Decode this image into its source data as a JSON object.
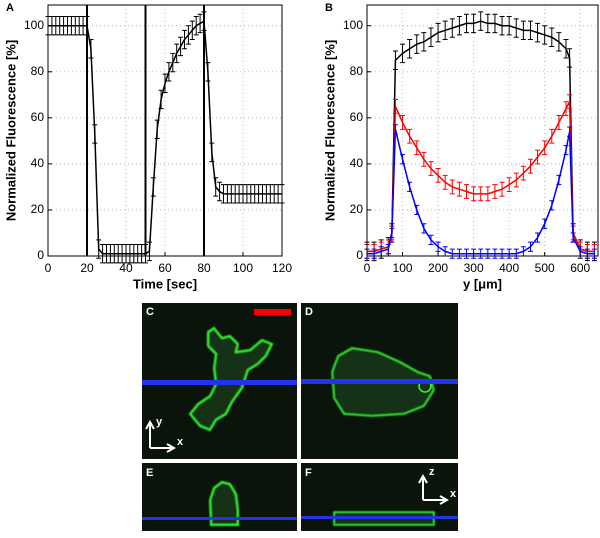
{
  "chart_data": [
    {
      "type": "line",
      "label": "A",
      "xlabel": "Time [sec]",
      "ylabel": "Normalized Fluorescence [%]",
      "xlim": [
        0,
        120
      ],
      "xticks": [
        0,
        20,
        40,
        60,
        80,
        100,
        120
      ],
      "ylim": [
        0,
        109
      ],
      "yticks": [
        0,
        20,
        40,
        60,
        80,
        100
      ],
      "grid": true,
      "vlines": [
        20,
        50,
        80
      ],
      "x": [
        0,
        2,
        4,
        6,
        8,
        10,
        12,
        14,
        16,
        18,
        20,
        22,
        24,
        26,
        28,
        30,
        32,
        34,
        36,
        38,
        40,
        42,
        44,
        46,
        48,
        50,
        52,
        54,
        56,
        58,
        60,
        62,
        64,
        66,
        68,
        70,
        72,
        74,
        76,
        78,
        80,
        82,
        84,
        86,
        88,
        90,
        92,
        94,
        96,
        98,
        100,
        102,
        104,
        106,
        108,
        110,
        112,
        114,
        116,
        118,
        120
      ],
      "series": [
        {
          "color": "#000000",
          "error": 4,
          "values": [
            100,
            100,
            100,
            100,
            100,
            100,
            100,
            100,
            100,
            100,
            100,
            90,
            53,
            3,
            1,
            1,
            1,
            1,
            1,
            1,
            1,
            1,
            1,
            1,
            1,
            1,
            2,
            30,
            55,
            68,
            75,
            80,
            84,
            88,
            91,
            94,
            96,
            98,
            100,
            101,
            102,
            80,
            45,
            30,
            28,
            27,
            27,
            27,
            27,
            27,
            27,
            27,
            27,
            27,
            27,
            27,
            27,
            27,
            27,
            27,
            27
          ]
        }
      ]
    },
    {
      "type": "line",
      "label": "B",
      "xlabel": "y [μm]",
      "ylabel": "Normalized Fluorescence [%]",
      "xlim": [
        0,
        650
      ],
      "xticks": [
        0,
        100,
        200,
        300,
        400,
        500,
        600
      ],
      "ylim": [
        0,
        109
      ],
      "yticks": [
        0,
        20,
        40,
        60,
        80,
        100
      ],
      "grid": true,
      "x": [
        0,
        20,
        40,
        60,
        70,
        80,
        100,
        120,
        140,
        160,
        180,
        200,
        220,
        240,
        260,
        280,
        300,
        320,
        340,
        360,
        380,
        400,
        420,
        440,
        460,
        480,
        500,
        520,
        540,
        560,
        570,
        580,
        600,
        620,
        640
      ],
      "series": [
        {
          "color": "#000000",
          "error": 4,
          "values": [
            2,
            2,
            3,
            4,
            10,
            85,
            88,
            90,
            92,
            93,
            95,
            97,
            98,
            99,
            100,
            101,
            101,
            102,
            101,
            101,
            100,
            100,
            99,
            98,
            98,
            97,
            96,
            95,
            93,
            90,
            86,
            10,
            3,
            2,
            2
          ]
        },
        {
          "color": "#ff0000",
          "error": 3,
          "values": [
            2,
            2,
            3,
            4,
            10,
            65,
            58,
            52,
            47,
            42,
            38,
            35,
            32,
            30,
            29,
            28,
            27,
            27,
            27,
            28,
            29,
            31,
            33,
            36,
            39,
            43,
            47,
            52,
            58,
            64,
            67,
            10,
            3,
            2,
            2
          ]
        },
        {
          "color": "#0000ff",
          "error": 2,
          "values": [
            1,
            1,
            2,
            3,
            10,
            55,
            42,
            30,
            20,
            12,
            7,
            4,
            2,
            1,
            1,
            1,
            1,
            1,
            1,
            1,
            1,
            1,
            1,
            2,
            4,
            8,
            14,
            22,
            33,
            46,
            54,
            8,
            2,
            1,
            1
          ]
        }
      ]
    }
  ],
  "panels": [
    {
      "label": "C",
      "axis_x": "x",
      "axis_y": "y"
    },
    {
      "label": "D"
    },
    {
      "label": "E"
    },
    {
      "label": "F",
      "axis_x": "x",
      "axis_z": "z"
    }
  ]
}
